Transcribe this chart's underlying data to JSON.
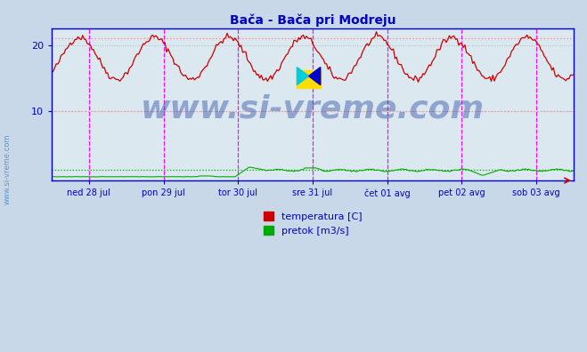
{
  "title": "Bača - Bača pri Modreju",
  "title_color": "#0000cc",
  "bg_color": "#c8d8e8",
  "plot_bg_color": "#dce8f0",
  "grid_color": "#b0b8c8",
  "axis_color": "#0000cc",
  "tick_color": "#0000cc",
  "xlabel_color": "#0000cc",
  "ylabel_ticks": [
    10,
    20
  ],
  "ylim": [
    -0.5,
    22.5
  ],
  "xlim": [
    0,
    336
  ],
  "x_tick_positions": [
    24,
    72,
    120,
    168,
    216,
    264,
    312
  ],
  "x_tick_labels": [
    "ned 28 jul",
    "pon 29 jul",
    "tor 30 jul",
    "sre 31 jul",
    "čet 01 avg",
    "pet 02 avg",
    "sob 03 avg"
  ],
  "vline_color": "#ff00ff",
  "hline_temp_max": 21.0,
  "hline_temp_avg": 10.0,
  "hline_flow_avg": 1.1,
  "temp_color": "#cc0000",
  "flow_color": "#00aa00",
  "watermark": "www.si-vreme.com",
  "watermark_color": "#3355aa",
  "legend_temp": "temperatura [C]",
  "legend_flow": "pretok [m3/s]",
  "figwidth": 6.59,
  "figheight": 3.96,
  "dpi": 100
}
